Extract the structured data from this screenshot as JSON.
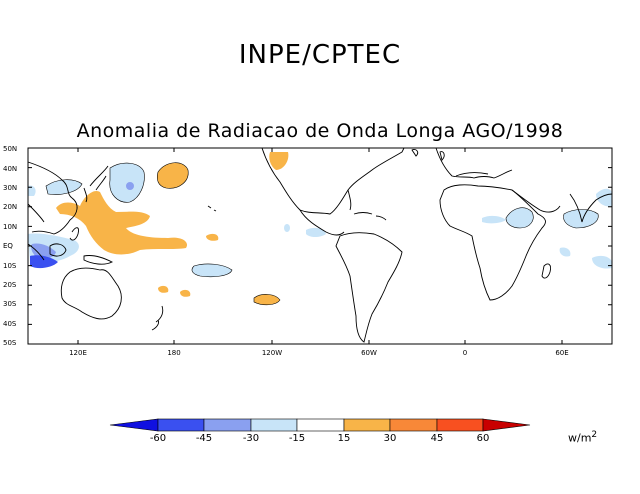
{
  "header": {
    "agency": "INPE/CPTEC",
    "title": "Anomalia de Radiacao de Onda Longa AGO/1998"
  },
  "map": {
    "lat_labels": [
      "50N",
      "40N",
      "30N",
      "20N",
      "10N",
      "EQ",
      "10S",
      "20S",
      "30S",
      "40S",
      "50S"
    ],
    "lon_labels": [
      "120E",
      "180",
      "120W",
      "60W",
      "0",
      "60E"
    ],
    "colors": {
      "neg60": "#1010e0",
      "neg45": "#3a50f0",
      "neg30": "#8aa0f0",
      "neg15": "#c8e4f8",
      "pos15": "#f8b448",
      "pos30": "#f88838",
      "pos45": "#f85020",
      "pos60": "#c80000"
    }
  },
  "colorbar": {
    "labels": [
      "-60",
      "-45",
      "-30",
      "-15",
      "15",
      "30",
      "45",
      "60"
    ],
    "unit": "w/m",
    "unit_exp": "2"
  }
}
